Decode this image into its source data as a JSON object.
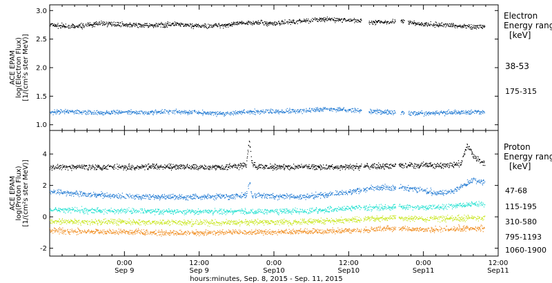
{
  "colors": {
    "axis": "#000000",
    "e_38_53": "#000000",
    "e_175_315": "#1e78d2",
    "p_47_68": "#000000",
    "p_115_195": "#1e78d2",
    "p_310_580": "#20e0d0",
    "p_795_1193": "#c8e61e",
    "p_1060_1900": "#f08c1e"
  },
  "chart_data": [
    {
      "type": "scatter",
      "panel": "electron",
      "ylabel_lines": [
        "ACE EPAM",
        "log(Electron Flux)",
        "[1/(cm²s ster MeV)]"
      ],
      "legend_title": [
        "Electron",
        "Energy range",
        "[keV]"
      ],
      "ylim": [
        0.9,
        3.1
      ],
      "yticks": [
        1.0,
        1.5,
        2.0,
        2.5,
        3.0
      ],
      "ytick_labels": [
        "1.0",
        "1.5",
        "2.0",
        "2.5",
        "3.0"
      ],
      "series": [
        {
          "name": "38-53",
          "color_key": "e_38_53",
          "x": [
            0,
            4,
            8,
            12,
            16,
            20,
            24,
            28,
            32,
            36,
            40,
            44,
            48,
            52,
            56,
            60,
            64,
            68,
            69.8
          ],
          "y": [
            2.75,
            2.72,
            2.78,
            2.76,
            2.74,
            2.77,
            2.73,
            2.75,
            2.8,
            2.78,
            2.82,
            2.85,
            2.84,
            2.8,
            2.82,
            2.76,
            2.75,
            2.72,
            2.73
          ],
          "gaps": [
            [
              50.0,
              51.2
            ],
            [
              55.5,
              56.3
            ],
            [
              56.9,
              57.5
            ]
          ]
        },
        {
          "name": "175-315",
          "color_key": "e_175_315",
          "x": [
            0,
            4,
            8,
            12,
            16,
            20,
            24,
            28,
            32,
            36,
            40,
            44,
            48,
            52,
            56,
            60,
            64,
            68,
            69.8
          ],
          "y": [
            1.22,
            1.24,
            1.21,
            1.23,
            1.22,
            1.24,
            1.22,
            1.2,
            1.23,
            1.24,
            1.25,
            1.28,
            1.26,
            1.24,
            1.22,
            1.2,
            1.22,
            1.23,
            1.22
          ],
          "gaps": [
            [
              50.0,
              51.2
            ],
            [
              55.5,
              56.3
            ],
            [
              56.9,
              57.5
            ]
          ]
        }
      ]
    },
    {
      "type": "scatter",
      "panel": "proton",
      "ylabel_lines": [
        "ACE EPAM",
        "log(Proton Flux)",
        "[1/(cm²s ster MeV)]"
      ],
      "legend_title": [
        "Proton",
        "Energy range",
        "[keV]"
      ],
      "ylim": [
        -2.5,
        5.5
      ],
      "yticks": [
        -2,
        0,
        2,
        4
      ],
      "ytick_labels": [
        "-2",
        "0",
        "2",
        "4"
      ],
      "series": [
        {
          "name": "47-68",
          "color_key": "p_47_68",
          "x": [
            0,
            6,
            12,
            18,
            24,
            28,
            31.5,
            32,
            32.4,
            33,
            36,
            42,
            48,
            54,
            58,
            62,
            64,
            66,
            67,
            68,
            69,
            69.8
          ],
          "y": [
            3.2,
            3.2,
            3.2,
            3.2,
            3.2,
            3.2,
            3.3,
            4.9,
            3.5,
            3.2,
            3.2,
            3.2,
            3.2,
            3.25,
            3.3,
            3.3,
            3.3,
            3.4,
            4.6,
            3.9,
            3.6,
            3.4
          ],
          "gaps": [
            [
              50.0,
              50.3
            ],
            [
              55.5,
              56.0
            ]
          ]
        },
        {
          "name": "115-195",
          "color_key": "p_115_195",
          "x": [
            0,
            4,
            8,
            12,
            16,
            20,
            24,
            28,
            31.5,
            32,
            32.4,
            34,
            40,
            44,
            48,
            52,
            56,
            60,
            62,
            64,
            66,
            68,
            69.8
          ],
          "y": [
            1.6,
            1.5,
            1.4,
            1.35,
            1.3,
            1.28,
            1.3,
            1.32,
            1.35,
            2.3,
            1.4,
            1.35,
            1.3,
            1.4,
            1.6,
            1.85,
            1.9,
            1.75,
            1.5,
            1.6,
            1.9,
            2.4,
            2.2
          ],
          "gaps": [
            [
              50.0,
              50.3
            ],
            [
              55.5,
              56.0
            ]
          ]
        },
        {
          "name": "310-580",
          "color_key": "p_310_580",
          "x": [
            0,
            4,
            8,
            12,
            16,
            20,
            24,
            28,
            32,
            36,
            40,
            44,
            48,
            52,
            56,
            60,
            64,
            68,
            69.8
          ],
          "y": [
            0.45,
            0.45,
            0.42,
            0.4,
            0.38,
            0.36,
            0.35,
            0.35,
            0.36,
            0.38,
            0.4,
            0.45,
            0.55,
            0.62,
            0.65,
            0.62,
            0.68,
            0.85,
            0.8
          ],
          "gaps": [
            [
              50.0,
              50.3
            ],
            [
              55.5,
              56.0
            ]
          ]
        },
        {
          "name": "795-1193",
          "color_key": "p_795_1193",
          "x": [
            0,
            4,
            8,
            12,
            16,
            20,
            24,
            28,
            32,
            36,
            40,
            44,
            48,
            52,
            56,
            60,
            64,
            68,
            69.8
          ],
          "y": [
            -0.25,
            -0.28,
            -0.3,
            -0.32,
            -0.33,
            -0.35,
            -0.35,
            -0.34,
            -0.33,
            -0.32,
            -0.3,
            -0.25,
            -0.18,
            -0.1,
            -0.05,
            -0.1,
            -0.08,
            -0.02,
            -0.05
          ],
          "gaps": [
            [
              50.0,
              50.3
            ],
            [
              55.5,
              56.0
            ]
          ]
        },
        {
          "name": "1060-1900",
          "color_key": "p_1060_1900",
          "x": [
            0,
            4,
            8,
            12,
            16,
            20,
            24,
            28,
            32,
            36,
            40,
            44,
            48,
            52,
            56,
            60,
            64,
            68,
            69.8
          ],
          "y": [
            -0.85,
            -0.9,
            -0.92,
            -0.95,
            -0.97,
            -1.0,
            -1.0,
            -0.98,
            -0.95,
            -0.95,
            -0.92,
            -0.9,
            -0.85,
            -0.78,
            -0.72,
            -0.8,
            -0.75,
            -0.7,
            -0.72
          ],
          "gaps": [
            [
              50.0,
              50.3
            ],
            [
              55.5,
              56.0
            ]
          ]
        }
      ]
    }
  ],
  "x_axis": {
    "range_hours": [
      0,
      72
    ],
    "minor_tick_step_hours": 2,
    "ticks": [
      {
        "hour": 12,
        "line1": "0:00",
        "line2": "Sep 9"
      },
      {
        "hour": 24,
        "line1": "12:00",
        "line2": "Sep 9"
      },
      {
        "hour": 36,
        "line1": "0:00",
        "line2": "Sep10"
      },
      {
        "hour": 48,
        "line1": "12:00",
        "line2": "Sep10"
      },
      {
        "hour": 60,
        "line1": "0:00",
        "line2": "Sep11"
      },
      {
        "hour": 72,
        "line1": "12:00",
        "line2": "Sep11"
      }
    ],
    "title": "hours:minutes, Sep. 8, 2015 - Sep. 11, 2015"
  }
}
